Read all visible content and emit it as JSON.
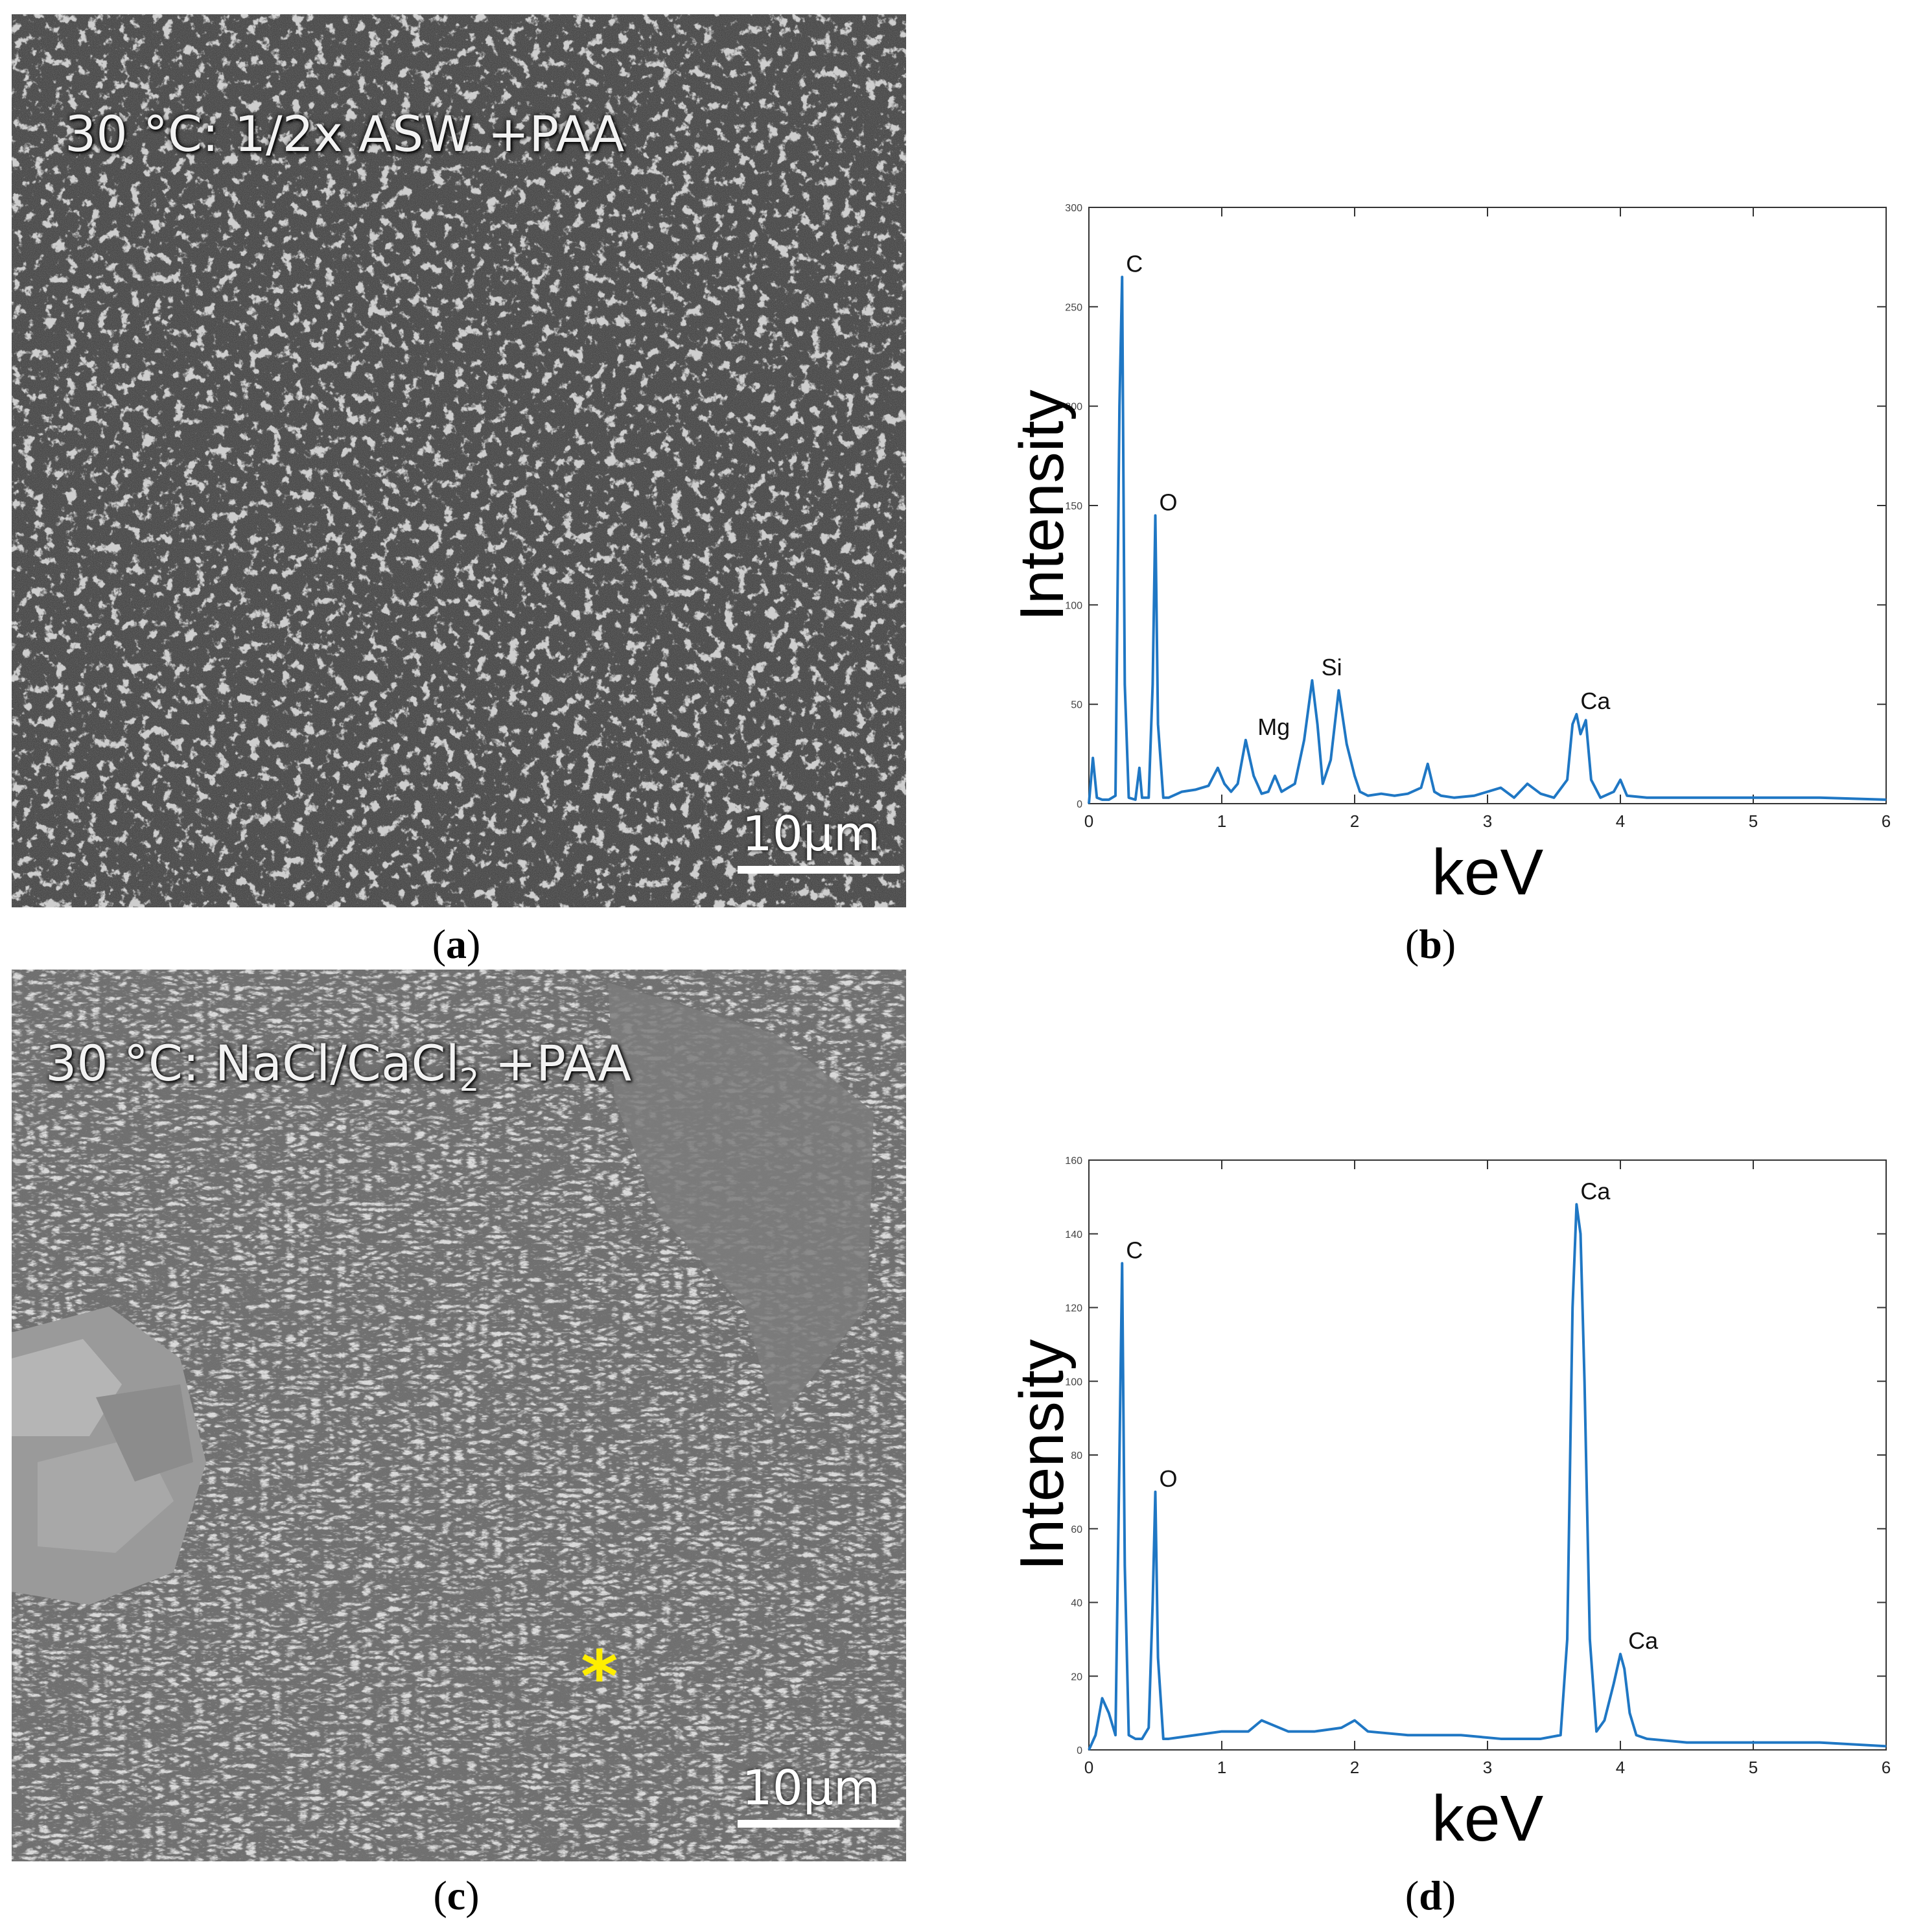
{
  "panels": {
    "a": {
      "caption_open": "(",
      "caption_letter": "a",
      "caption_close": ")",
      "label": "30 °C: 1/2x ASW +PAA",
      "scale": "10μm"
    },
    "b": {
      "caption_open": "(",
      "caption_letter": "b",
      "caption_close": ")"
    },
    "c": {
      "caption_open": "(",
      "caption_letter": "c",
      "caption_close": ")",
      "label_main": "30 °C: NaCl/CaCl",
      "label_sub": "2",
      "label_end": " +PAA",
      "marker": "*",
      "marker_color": "#ffee00",
      "scale": "10μm"
    },
    "d": {
      "caption_open": "(",
      "caption_letter": "d",
      "caption_close": ")"
    }
  },
  "chart_data": [
    {
      "type": "line",
      "panel": "b",
      "xlabel": "keV",
      "ylabel": "Intensity",
      "xlim": [
        0,
        6
      ],
      "ylim": [
        0,
        300
      ],
      "xticks": [
        0,
        1,
        2,
        3,
        4,
        5,
        6
      ],
      "yticks": [
        0,
        50,
        100,
        150,
        200,
        250,
        300
      ],
      "grid": false,
      "line_color": "#1f77c4",
      "series": [
        {
          "x": [
            0,
            0.03,
            0.06,
            0.1,
            0.15,
            0.2,
            0.23,
            0.25,
            0.27,
            0.3,
            0.35,
            0.38,
            0.4,
            0.45,
            0.48,
            0.5,
            0.52,
            0.56,
            0.6,
            0.7,
            0.8,
            0.9,
            0.97,
            1.02,
            1.07,
            1.12,
            1.18,
            1.24,
            1.3,
            1.35,
            1.4,
            1.45,
            1.5,
            1.55,
            1.62,
            1.68,
            1.72,
            1.76,
            1.82,
            1.88,
            1.94,
            2.0,
            2.04,
            2.1,
            2.2,
            2.3,
            2.4,
            2.5,
            2.55,
            2.6,
            2.65,
            2.75,
            2.9,
            3.1,
            3.2,
            3.3,
            3.4,
            3.5,
            3.6,
            3.64,
            3.67,
            3.7,
            3.74,
            3.78,
            3.85,
            3.95,
            4.0,
            4.05,
            4.2,
            4.5,
            5.0,
            5.5,
            6.0
          ],
          "y": [
            0,
            23,
            3,
            2,
            2,
            4,
            200,
            265,
            60,
            3,
            2,
            18,
            3,
            3,
            60,
            145,
            40,
            3,
            3,
            6,
            7,
            9,
            18,
            10,
            6,
            10,
            32,
            14,
            5,
            6,
            14,
            6,
            8,
            10,
            32,
            62,
            40,
            10,
            22,
            57,
            30,
            14,
            6,
            4,
            5,
            4,
            5,
            8,
            20,
            6,
            4,
            3,
            4,
            8,
            3,
            10,
            5,
            3,
            12,
            40,
            45,
            35,
            42,
            12,
            3,
            6,
            12,
            4,
            3,
            3,
            3,
            3,
            2
          ]
        }
      ],
      "annotations": [
        {
          "text": "C",
          "x": 0.25,
          "y": 265
        },
        {
          "text": "O",
          "x": 0.5,
          "y": 145
        },
        {
          "text": "Mg",
          "x": 1.24,
          "y": 32
        },
        {
          "text": "Si",
          "x": 1.72,
          "y": 62
        },
        {
          "text": "Ca",
          "x": 3.67,
          "y": 45
        }
      ]
    },
    {
      "type": "line",
      "panel": "d",
      "xlabel": "keV",
      "ylabel": "Intensity",
      "xlim": [
        0,
        6
      ],
      "ylim": [
        0,
        160
      ],
      "xticks": [
        0,
        1,
        2,
        3,
        4,
        5,
        6
      ],
      "yticks": [
        0,
        20,
        40,
        60,
        80,
        100,
        120,
        140,
        160
      ],
      "grid": false,
      "line_color": "#1f77c4",
      "series": [
        {
          "x": [
            0,
            0.05,
            0.1,
            0.15,
            0.2,
            0.23,
            0.25,
            0.27,
            0.3,
            0.35,
            0.4,
            0.45,
            0.48,
            0.5,
            0.52,
            0.56,
            0.6,
            0.8,
            1.0,
            1.2,
            1.3,
            1.5,
            1.7,
            1.9,
            2.0,
            2.1,
            2.4,
            2.8,
            3.1,
            3.4,
            3.55,
            3.6,
            3.64,
            3.67,
            3.7,
            3.73,
            3.77,
            3.82,
            3.88,
            3.95,
            4.0,
            4.03,
            4.07,
            4.12,
            4.2,
            4.5,
            5.0,
            5.5,
            6.0
          ],
          "y": [
            0,
            4,
            14,
            10,
            4,
            80,
            132,
            50,
            4,
            3,
            3,
            6,
            40,
            70,
            25,
            3,
            3,
            4,
            5,
            5,
            8,
            5,
            5,
            6,
            8,
            5,
            4,
            4,
            3,
            3,
            4,
            30,
            120,
            148,
            140,
            100,
            30,
            5,
            8,
            18,
            26,
            22,
            10,
            4,
            3,
            2,
            2,
            2,
            1
          ]
        }
      ],
      "annotations": [
        {
          "text": "C",
          "x": 0.25,
          "y": 132
        },
        {
          "text": "O",
          "x": 0.5,
          "y": 70
        },
        {
          "text": "Ca",
          "x": 3.67,
          "y": 148
        },
        {
          "text": "Ca",
          "x": 4.03,
          "y": 26
        }
      ]
    }
  ]
}
